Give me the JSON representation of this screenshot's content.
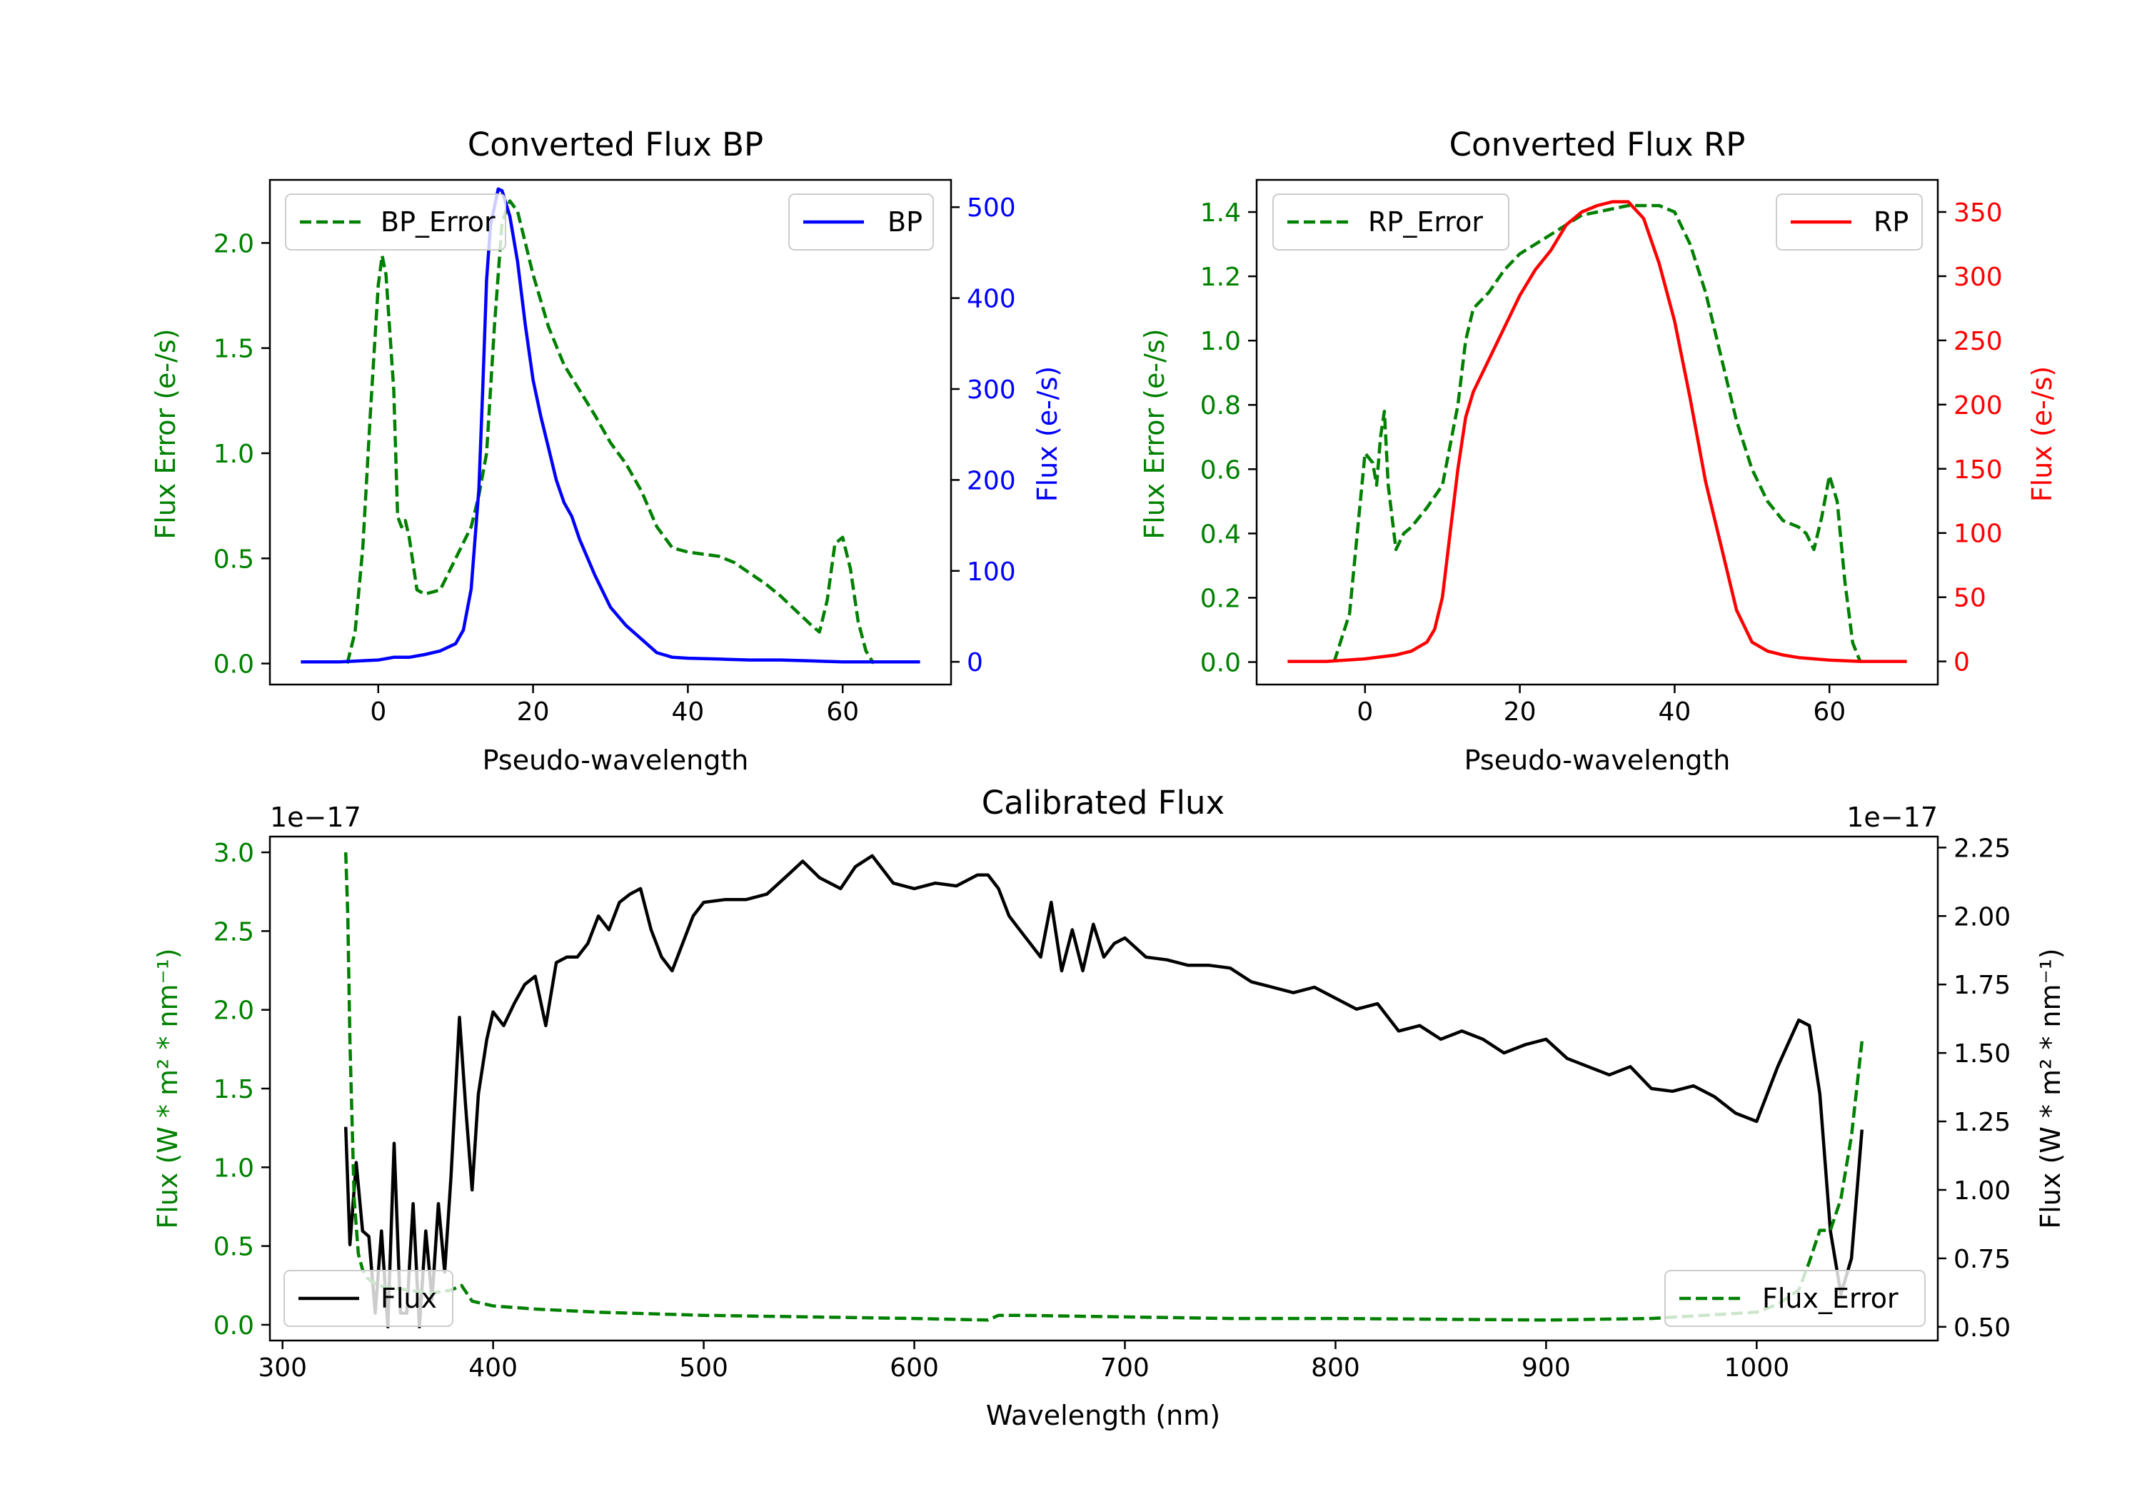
{
  "chart_data": [
    {
      "type": "line",
      "title": "Converted Flux BP",
      "xlabel": "Pseudo-wavelength",
      "xlim": [
        -14,
        74
      ],
      "x_ticks": [
        0,
        20,
        40,
        60
      ],
      "left_axis": {
        "label": "Flux Error (e-/s)",
        "color": "#008000",
        "ylim": [
          -0.1,
          2.3
        ],
        "ticks": [
          0.0,
          0.5,
          1.0,
          1.5,
          2.0
        ],
        "tick_labels": [
          "0.0",
          "0.5",
          "1.0",
          "1.5",
          "2.0"
        ]
      },
      "right_axis": {
        "label": "Flux (e-/s)",
        "color": "#0000ff",
        "ylim": [
          -25,
          530
        ],
        "ticks": [
          0,
          100,
          200,
          300,
          400,
          500
        ],
        "tick_labels": [
          "0",
          "100",
          "200",
          "300",
          "400",
          "500"
        ]
      },
      "series": [
        {
          "name": "BP_Error",
          "axis": "left",
          "style": "dashed",
          "color": "#008000",
          "x": [
            -4,
            -3,
            -2,
            -1,
            0,
            0.5,
            1,
            2,
            2.5,
            3,
            3.5,
            4,
            5,
            6,
            7,
            8,
            10,
            12,
            13,
            14,
            15,
            16,
            17,
            18,
            19,
            20,
            22,
            24,
            26,
            28,
            30,
            32,
            34,
            36,
            38,
            40,
            42,
            44,
            46,
            48,
            50,
            52,
            54,
            56,
            57,
            58,
            59,
            60,
            61,
            62,
            63,
            64
          ],
          "y": [
            0.0,
            0.15,
            0.55,
            1.2,
            1.8,
            1.94,
            1.85,
            1.3,
            0.7,
            0.65,
            0.68,
            0.6,
            0.35,
            0.33,
            0.34,
            0.35,
            0.5,
            0.65,
            0.8,
            1.0,
            1.6,
            2.1,
            2.2,
            2.15,
            2.0,
            1.85,
            1.6,
            1.42,
            1.3,
            1.18,
            1.05,
            0.95,
            0.82,
            0.65,
            0.55,
            0.53,
            0.52,
            0.51,
            0.48,
            0.43,
            0.38,
            0.32,
            0.25,
            0.18,
            0.15,
            0.3,
            0.57,
            0.6,
            0.45,
            0.2,
            0.06,
            0.0
          ]
        },
        {
          "name": "BP",
          "axis": "right",
          "style": "solid",
          "color": "#0000ff",
          "x": [
            -10,
            -5,
            0,
            2,
            4,
            6,
            8,
            10,
            11,
            12,
            13,
            13.5,
            14,
            14.5,
            15,
            15.5,
            16,
            17,
            18,
            19,
            20,
            21,
            22,
            23,
            24,
            25,
            26,
            28,
            30,
            32,
            34,
            36,
            38,
            40,
            44,
            48,
            52,
            56,
            60,
            64,
            70
          ],
          "y": [
            0,
            0,
            2,
            5,
            5,
            8,
            12,
            20,
            35,
            80,
            190,
            300,
            420,
            480,
            500,
            520,
            518,
            490,
            440,
            370,
            310,
            270,
            235,
            200,
            175,
            160,
            135,
            95,
            60,
            40,
            25,
            10,
            5,
            4,
            3,
            2,
            2,
            1,
            0,
            0,
            0
          ]
        }
      ],
      "legend": [
        {
          "label": "BP_Error",
          "position": "top-left"
        },
        {
          "label": "BP",
          "position": "top-right"
        }
      ]
    },
    {
      "type": "line",
      "title": "Converted Flux RP",
      "xlabel": "Pseudo-wavelength",
      "xlim": [
        -14,
        74
      ],
      "x_ticks": [
        0,
        20,
        40,
        60
      ],
      "left_axis": {
        "label": "Flux Error (e-/s)",
        "color": "#008000",
        "ylim": [
          -0.07,
          1.5
        ],
        "ticks": [
          0.0,
          0.2,
          0.4,
          0.6,
          0.8,
          1.0,
          1.2,
          1.4
        ],
        "tick_labels": [
          "0.0",
          "0.2",
          "0.4",
          "0.6",
          "0.8",
          "1.0",
          "1.2",
          "1.4"
        ]
      },
      "right_axis": {
        "label": "Flux (e-/s)",
        "color": "#ff0000",
        "ylim": [
          -18,
          375
        ],
        "ticks": [
          0,
          50,
          100,
          150,
          200,
          250,
          300,
          350
        ],
        "tick_labels": [
          "0",
          "50",
          "100",
          "150",
          "200",
          "250",
          "300",
          "350"
        ]
      },
      "series": [
        {
          "name": "RP_Error",
          "axis": "left",
          "style": "dashed",
          "color": "#008000",
          "x": [
            -4,
            -2,
            -1,
            0,
            1,
            1.5,
            2,
            2.5,
            3,
            4,
            5,
            6,
            8,
            10,
            12,
            13,
            14,
            16,
            18,
            20,
            22,
            24,
            26,
            28,
            30,
            32,
            34,
            36,
            38,
            40,
            42,
            44,
            46,
            48,
            50,
            52,
            54,
            56,
            57,
            58,
            59,
            60,
            61,
            62,
            63,
            64
          ],
          "y": [
            0.0,
            0.15,
            0.4,
            0.65,
            0.62,
            0.55,
            0.7,
            0.78,
            0.55,
            0.35,
            0.4,
            0.42,
            0.48,
            0.55,
            0.8,
            1.0,
            1.1,
            1.15,
            1.22,
            1.27,
            1.3,
            1.33,
            1.36,
            1.39,
            1.4,
            1.41,
            1.42,
            1.42,
            1.42,
            1.4,
            1.3,
            1.15,
            0.95,
            0.75,
            0.6,
            0.5,
            0.44,
            0.42,
            0.4,
            0.35,
            0.45,
            0.58,
            0.5,
            0.25,
            0.06,
            0.0
          ]
        },
        {
          "name": "RP",
          "axis": "right",
          "style": "solid",
          "color": "#ff0000",
          "x": [
            -10,
            -5,
            0,
            4,
            6,
            8,
            9,
            10,
            11,
            12,
            13,
            14,
            16,
            18,
            20,
            22,
            24,
            26,
            28,
            30,
            32,
            34,
            36,
            38,
            40,
            42,
            44,
            46,
            48,
            50,
            52,
            54,
            56,
            58,
            60,
            64,
            70
          ],
          "y": [
            0,
            0,
            2,
            5,
            8,
            15,
            25,
            50,
            100,
            150,
            190,
            210,
            235,
            260,
            285,
            305,
            320,
            340,
            350,
            355,
            358,
            358,
            345,
            310,
            265,
            205,
            140,
            90,
            40,
            15,
            8,
            5,
            3,
            2,
            1,
            0,
            0
          ]
        }
      ],
      "legend": [
        {
          "label": "RP_Error",
          "position": "top-left"
        },
        {
          "label": "RP",
          "position": "top-right"
        }
      ]
    },
    {
      "type": "line",
      "title": "Calibrated Flux",
      "xlabel": "Wavelength (nm)",
      "xlim": [
        294,
        1086
      ],
      "x_ticks": [
        300,
        400,
        500,
        600,
        700,
        800,
        900,
        1000
      ],
      "left_axis": {
        "label": "Flux (W * m² * nm⁻¹)",
        "color": "#008000",
        "offset_text": "1e−17",
        "ylim": [
          -0.1,
          3.1
        ],
        "ticks": [
          0.0,
          0.5,
          1.0,
          1.5,
          2.0,
          2.5,
          3.0
        ],
        "tick_labels": [
          "0.0",
          "0.5",
          "1.0",
          "1.5",
          "2.0",
          "2.5",
          "3.0"
        ]
      },
      "right_axis": {
        "label": "Flux (W * m² * nm⁻¹)",
        "color": "#000000",
        "offset_text": "1e−17",
        "ylim": [
          0.45,
          2.29
        ],
        "ticks": [
          0.5,
          0.75,
          1.0,
          1.25,
          1.5,
          1.75,
          2.0,
          2.25
        ],
        "tick_labels": [
          "0.50",
          "0.75",
          "1.00",
          "1.25",
          "1.50",
          "1.75",
          "2.00",
          "2.25"
        ]
      },
      "series": [
        {
          "name": "Flux",
          "axis": "right",
          "style": "solid",
          "color": "#000000",
          "x": [
            330,
            332,
            335,
            338,
            341,
            344,
            347,
            350,
            353,
            356,
            359,
            362,
            365,
            368,
            371,
            374,
            377,
            380,
            384,
            387,
            390,
            393,
            397,
            400,
            405,
            410,
            415,
            420,
            425,
            430,
            435,
            440,
            445,
            450,
            455,
            460,
            465,
            470,
            475,
            480,
            485,
            490,
            495,
            500,
            510,
            520,
            530,
            540,
            547,
            555,
            565,
            572,
            580,
            590,
            600,
            610,
            620,
            630,
            635,
            640,
            645,
            650,
            655,
            660,
            665,
            670,
            675,
            680,
            685,
            690,
            695,
            700,
            710,
            720,
            730,
            740,
            750,
            760,
            770,
            780,
            790,
            800,
            810,
            820,
            830,
            840,
            850,
            860,
            870,
            880,
            890,
            900,
            910,
            920,
            930,
            940,
            950,
            960,
            970,
            980,
            990,
            1000,
            1010,
            1020,
            1025,
            1030,
            1035,
            1040,
            1045,
            1050
          ],
          "y": [
            1.23,
            0.8,
            1.1,
            0.85,
            0.83,
            0.55,
            0.85,
            0.5,
            1.17,
            0.55,
            0.55,
            0.95,
            0.5,
            0.85,
            0.6,
            0.95,
            0.7,
            1.05,
            1.63,
            1.3,
            1.0,
            1.35,
            1.55,
            1.65,
            1.6,
            1.68,
            1.75,
            1.78,
            1.6,
            1.83,
            1.85,
            1.85,
            1.9,
            2.0,
            1.95,
            2.05,
            2.08,
            2.1,
            1.95,
            1.85,
            1.8,
            1.9,
            2.0,
            2.05,
            2.06,
            2.06,
            2.08,
            2.15,
            2.2,
            2.14,
            2.1,
            2.18,
            2.22,
            2.12,
            2.1,
            2.12,
            2.11,
            2.15,
            2.15,
            2.1,
            2.0,
            1.95,
            1.9,
            1.85,
            2.05,
            1.8,
            1.95,
            1.8,
            1.97,
            1.85,
            1.9,
            1.92,
            1.85,
            1.84,
            1.82,
            1.82,
            1.81,
            1.76,
            1.74,
            1.72,
            1.74,
            1.7,
            1.66,
            1.68,
            1.58,
            1.6,
            1.55,
            1.58,
            1.55,
            1.5,
            1.53,
            1.55,
            1.48,
            1.45,
            1.42,
            1.45,
            1.37,
            1.36,
            1.38,
            1.34,
            1.28,
            1.25,
            1.45,
            1.62,
            1.6,
            1.35,
            0.85,
            0.62,
            0.75,
            1.22
          ]
        },
        {
          "name": "Flux_Error",
          "axis": "left",
          "style": "dashed",
          "color": "#008000",
          "x": [
            330,
            331,
            332,
            334,
            336,
            338,
            340,
            345,
            350,
            360,
            370,
            380,
            385,
            390,
            400,
            420,
            450,
            500,
            550,
            600,
            635,
            640,
            650,
            700,
            750,
            800,
            850,
            900,
            950,
            1000,
            1010,
            1020,
            1025,
            1030,
            1035,
            1040,
            1045,
            1050
          ],
          "y": [
            3.0,
            2.6,
            1.8,
            0.8,
            0.45,
            0.35,
            0.3,
            0.25,
            0.24,
            0.22,
            0.2,
            0.22,
            0.25,
            0.15,
            0.12,
            0.1,
            0.08,
            0.06,
            0.05,
            0.04,
            0.03,
            0.06,
            0.06,
            0.05,
            0.04,
            0.04,
            0.035,
            0.03,
            0.04,
            0.08,
            0.13,
            0.22,
            0.4,
            0.6,
            0.6,
            0.8,
            1.2,
            1.8
          ]
        }
      ],
      "legend": [
        {
          "label": "Flux",
          "position": "bottom-left"
        },
        {
          "label": "Flux_Error",
          "position": "bottom-right"
        }
      ]
    }
  ]
}
